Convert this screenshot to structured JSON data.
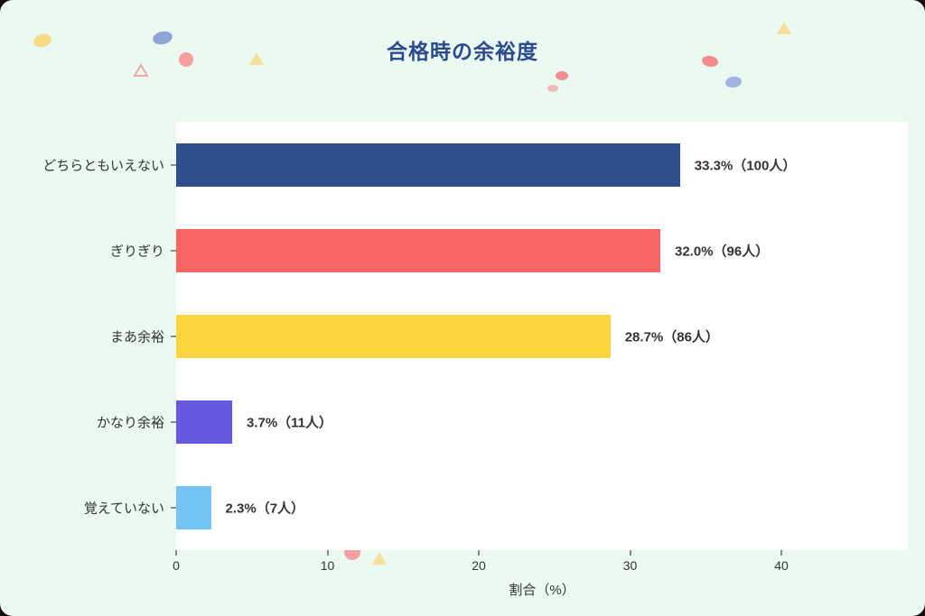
{
  "page": {
    "background_color": "#eafaf1",
    "card_color": "#ffffff"
  },
  "chart_data": {
    "type": "bar",
    "orientation": "horizontal",
    "title": "合格時の余裕度",
    "xlabel": "割合（%）",
    "xlim": [
      0,
      48.4
    ],
    "xticks": [
      0,
      10,
      20,
      30,
      40
    ],
    "grid": false,
    "legend": false,
    "categories": [
      "どちらともいえない",
      "ぎりぎり",
      "まあ余裕",
      "かなり余裕",
      "覚えていない"
    ],
    "values": [
      33.3,
      32.0,
      28.7,
      3.7,
      2.3
    ],
    "counts": [
      100,
      96,
      86,
      11,
      7
    ],
    "value_labels": [
      "33.3%（100人）",
      "32.0%（96人）",
      "28.7%（86人）",
      "3.7%（11人）",
      "2.3%（7人）"
    ],
    "bar_colors": [
      "#2f4e8d",
      "#fa6464",
      "#fcd53e",
      "#6759df",
      "#72c4f5"
    ],
    "title_color": "#2c4a8f",
    "text_color": "#333333"
  },
  "decorations": {
    "confetti_shapes": [
      "ellipse",
      "triangle",
      "dotted-circle"
    ],
    "confetti_colors": [
      "#f6da85",
      "#90a5d6",
      "#f58a8a",
      "#f7df9b",
      "#a3b3e0"
    ]
  }
}
